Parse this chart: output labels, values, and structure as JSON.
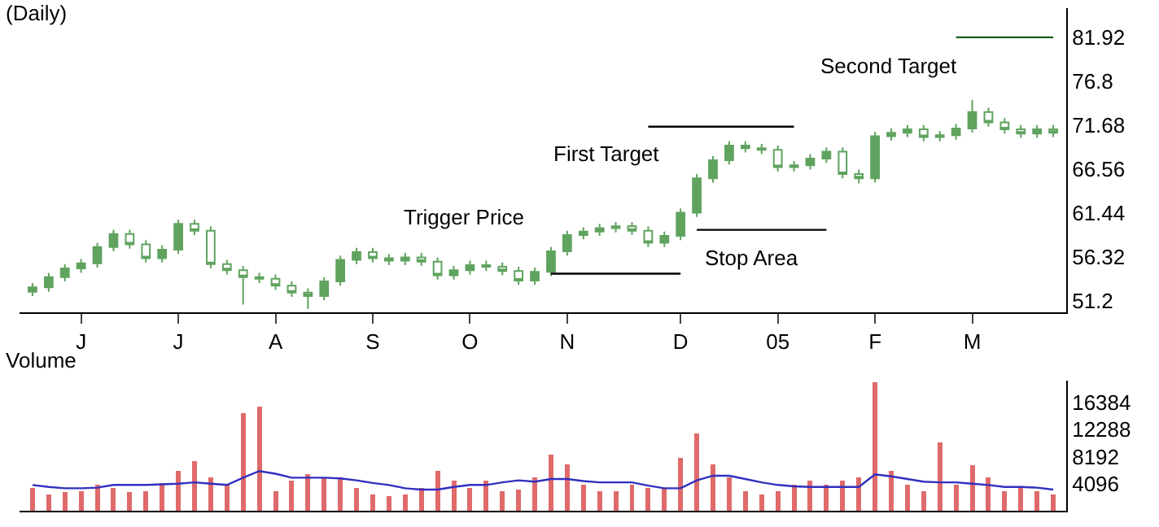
{
  "chart_data": [
    {
      "type": "candlestick",
      "title": "(Daily)",
      "color": "#5fa35f",
      "categories": [
        null,
        null,
        null,
        "J",
        null,
        null,
        null,
        null,
        null,
        "J",
        null,
        null,
        null,
        null,
        null,
        "A",
        null,
        null,
        null,
        null,
        null,
        "S",
        null,
        null,
        null,
        null,
        null,
        "O",
        null,
        null,
        null,
        null,
        null,
        "N",
        null,
        null,
        null,
        null,
        null,
        null,
        "D",
        null,
        null,
        null,
        null,
        null,
        "05",
        null,
        null,
        null,
        null,
        null,
        "F",
        null,
        null,
        null,
        null,
        null,
        "M",
        null,
        null,
        null,
        null,
        null
      ],
      "ohlc": [
        [
          52.3,
          53.3,
          51.8,
          52.8
        ],
        [
          52.8,
          54.5,
          52.3,
          54.0
        ],
        [
          54.0,
          55.5,
          53.5,
          55.0
        ],
        [
          55.0,
          56.1,
          54.5,
          55.6
        ],
        [
          55.6,
          58.0,
          55.1,
          57.5
        ],
        [
          57.5,
          59.5,
          57.0,
          59.0
        ],
        [
          59.0,
          59.5,
          57.3,
          57.8
        ],
        [
          57.8,
          58.3,
          55.7,
          56.2
        ],
        [
          56.2,
          57.7,
          55.7,
          57.2
        ],
        [
          57.2,
          60.7,
          56.7,
          60.2
        ],
        [
          60.2,
          60.7,
          58.9,
          59.4
        ],
        [
          59.4,
          59.9,
          55.0,
          55.5
        ],
        [
          55.5,
          56.0,
          54.3,
          54.8
        ],
        [
          54.8,
          55.3,
          50.8,
          54.0
        ],
        [
          54.0,
          54.5,
          53.3,
          53.8
        ],
        [
          53.8,
          54.3,
          52.5,
          53.0
        ],
        [
          53.0,
          53.5,
          51.7,
          52.2
        ],
        [
          52.2,
          52.7,
          50.3,
          51.8
        ],
        [
          51.8,
          54.0,
          51.3,
          53.5
        ],
        [
          53.5,
          56.5,
          53.0,
          56.0
        ],
        [
          56.0,
          57.4,
          55.5,
          56.9
        ],
        [
          56.9,
          57.4,
          55.7,
          56.2
        ],
        [
          56.2,
          56.7,
          55.4,
          55.9
        ],
        [
          55.9,
          56.8,
          55.4,
          56.3
        ],
        [
          56.3,
          56.8,
          55.3,
          55.8
        ],
        [
          55.8,
          56.3,
          53.7,
          54.2
        ],
        [
          54.2,
          55.3,
          53.7,
          54.8
        ],
        [
          54.8,
          55.9,
          54.3,
          55.4
        ],
        [
          55.4,
          55.9,
          54.7,
          55.2
        ],
        [
          55.2,
          55.7,
          54.2,
          54.7
        ],
        [
          54.7,
          55.2,
          53.1,
          53.6
        ],
        [
          53.6,
          55.1,
          53.1,
          54.6
        ],
        [
          54.6,
          57.5,
          54.1,
          57.0
        ],
        [
          57.0,
          59.4,
          56.5,
          58.9
        ],
        [
          58.9,
          59.8,
          58.4,
          59.3
        ],
        [
          59.3,
          60.2,
          58.8,
          59.7
        ],
        [
          59.7,
          60.4,
          59.2,
          59.9
        ],
        [
          59.9,
          60.4,
          58.9,
          59.4
        ],
        [
          59.4,
          59.9,
          57.5,
          58.0
        ],
        [
          58.0,
          59.3,
          57.5,
          58.8
        ],
        [
          58.8,
          62.0,
          58.3,
          61.5
        ],
        [
          61.5,
          66.0,
          61.0,
          65.5
        ],
        [
          65.5,
          68.1,
          65.0,
          67.6
        ],
        [
          67.6,
          69.8,
          67.1,
          69.3
        ],
        [
          69.3,
          69.8,
          68.5,
          69.0
        ],
        [
          69.0,
          69.5,
          68.3,
          68.8
        ],
        [
          68.8,
          69.3,
          66.3,
          66.8
        ],
        [
          66.8,
          67.5,
          66.3,
          67.0
        ],
        [
          67.0,
          68.3,
          66.5,
          67.8
        ],
        [
          67.8,
          69.1,
          67.3,
          68.6
        ],
        [
          68.6,
          69.1,
          65.5,
          66.0
        ],
        [
          66.0,
          66.5,
          64.9,
          65.5
        ],
        [
          65.5,
          70.9,
          65.0,
          70.4
        ],
        [
          70.4,
          71.3,
          69.9,
          70.8
        ],
        [
          70.8,
          71.7,
          70.3,
          71.2
        ],
        [
          71.2,
          71.7,
          69.8,
          70.3
        ],
        [
          70.3,
          71.0,
          69.8,
          70.5
        ],
        [
          70.5,
          71.8,
          70.0,
          71.3
        ],
        [
          71.3,
          74.6,
          70.8,
          73.2
        ],
        [
          73.2,
          73.7,
          71.5,
          72.0
        ],
        [
          72.0,
          72.5,
          70.7,
          71.2
        ],
        [
          71.2,
          71.7,
          70.2,
          70.7
        ],
        [
          70.7,
          71.7,
          70.2,
          71.2
        ],
        [
          71.2,
          71.7,
          70.3,
          70.8
        ]
      ],
      "series": [
        {
          "type": "line",
          "color": "#000000",
          "values": [
            null,
            null,
            null,
            null,
            null,
            null,
            null,
            null,
            null,
            null,
            null,
            null,
            null,
            null,
            null,
            null,
            null,
            null,
            null,
            null,
            null,
            null,
            null,
            null,
            null,
            null,
            null,
            null,
            null,
            null,
            null,
            null,
            54.4,
            54.4,
            54.4,
            54.4,
            54.4,
            54.4,
            54.4,
            54.4,
            54.4,
            null,
            null,
            null,
            null,
            null,
            null,
            null,
            null,
            null,
            null,
            null,
            null,
            null,
            null,
            null,
            null,
            null,
            null,
            null,
            null,
            null,
            null,
            null
          ]
        },
        {
          "type": "line",
          "color": "#000000",
          "values": [
            null,
            null,
            null,
            null,
            null,
            null,
            null,
            null,
            null,
            null,
            null,
            null,
            null,
            null,
            null,
            null,
            null,
            null,
            null,
            null,
            null,
            null,
            null,
            null,
            null,
            null,
            null,
            null,
            null,
            null,
            null,
            null,
            null,
            null,
            null,
            null,
            null,
            null,
            null,
            null,
            null,
            59.5,
            59.5,
            59.5,
            59.5,
            59.5,
            59.5,
            59.5,
            59.5,
            59.5,
            null,
            null,
            null,
            null,
            null,
            null,
            null,
            null,
            null,
            null,
            null,
            null,
            null,
            null
          ]
        },
        {
          "type": "line",
          "color": "#000000",
          "values": [
            null,
            null,
            null,
            null,
            null,
            null,
            null,
            null,
            null,
            null,
            null,
            null,
            null,
            null,
            null,
            null,
            null,
            null,
            null,
            null,
            null,
            null,
            null,
            null,
            null,
            null,
            null,
            null,
            null,
            null,
            null,
            null,
            null,
            null,
            null,
            null,
            null,
            null,
            71.5,
            71.5,
            71.5,
            71.5,
            71.5,
            71.5,
            71.5,
            71.5,
            71.5,
            71.5,
            null,
            null,
            null,
            null,
            null,
            null,
            null,
            null,
            null,
            null,
            null,
            null,
            null,
            null,
            null,
            null
          ]
        },
        {
          "type": "line",
          "color": "#1a5c1a",
          "values": [
            null,
            null,
            null,
            null,
            null,
            null,
            null,
            null,
            null,
            null,
            null,
            null,
            null,
            null,
            null,
            null,
            null,
            null,
            null,
            null,
            null,
            null,
            null,
            null,
            null,
            null,
            null,
            null,
            null,
            null,
            null,
            null,
            null,
            null,
            null,
            null,
            null,
            null,
            null,
            null,
            null,
            null,
            null,
            null,
            null,
            null,
            null,
            null,
            null,
            null,
            null,
            null,
            null,
            null,
            null,
            null,
            null,
            81.9,
            81.9,
            81.9,
            81.9,
            81.9,
            81.9,
            81.9
          ]
        }
      ],
      "annotations": [
        "Trigger Price",
        "Stop Area",
        "First Target",
        "Second Target"
      ],
      "ylim": [
        49.9,
        85.3
      ],
      "yticks": [
        51.2,
        56.32,
        61.44,
        66.56,
        71.68,
        76.8,
        81.92
      ]
    },
    {
      "type": "bar",
      "title": "Volume",
      "categories": [
        null,
        null,
        null,
        null,
        null,
        null,
        null,
        null,
        null,
        null,
        null,
        null,
        null,
        null,
        null,
        null,
        null,
        null,
        null,
        null,
        null,
        null,
        null,
        null,
        null,
        null,
        null,
        null,
        null,
        null,
        null,
        null,
        null,
        null,
        null,
        null,
        null,
        null,
        null,
        null,
        null,
        null,
        null,
        null,
        null,
        null,
        null,
        null,
        null,
        null,
        null,
        null,
        null,
        null,
        null,
        null,
        null,
        null,
        null,
        null,
        null,
        null,
        null,
        null
      ],
      "color": "#e06a6a",
      "values": [
        3500,
        2500,
        2800,
        3000,
        4000,
        3500,
        2800,
        3000,
        4200,
        6000,
        7500,
        5000,
        4000,
        14800,
        15700,
        3000,
        4500,
        5500,
        5000,
        5000,
        3500,
        2500,
        2200,
        2500,
        3500,
        6000,
        4500,
        3500,
        4500,
        3000,
        3200,
        5000,
        8500,
        7000,
        4000,
        3000,
        3000,
        4000,
        3500,
        3500,
        8000,
        11700,
        7000,
        5000,
        3000,
        2500,
        3000,
        4000,
        4500,
        4000,
        4500,
        5000,
        19400,
        6000,
        4000,
        3000,
        10400,
        4000,
        6900,
        5000,
        3000,
        3500,
        3000,
        2500
      ],
      "series": [
        {
          "type": "line",
          "color": "#3030c0",
          "values": [
            3900,
            3600,
            3400,
            3400,
            3500,
            3900,
            3900,
            3900,
            4000,
            4100,
            4300,
            4100,
            3900,
            5000,
            6000,
            5600,
            5000,
            5000,
            5000,
            4900,
            4600,
            4200,
            3900,
            3400,
            3200,
            3200,
            3600,
            3900,
            3900,
            4300,
            4600,
            4400,
            4800,
            4800,
            4500,
            4300,
            4300,
            4300,
            3800,
            3400,
            3400,
            4600,
            5300,
            5300,
            4800,
            4300,
            3900,
            3700,
            3600,
            3600,
            3600,
            3600,
            5500,
            5200,
            4800,
            4400,
            4300,
            4300,
            4100,
            3900,
            3600,
            3600,
            3500,
            3200
          ]
        }
      ],
      "tick_labels": "y",
      "ylim": [
        0,
        19700
      ],
      "yticks": [
        4096,
        8192,
        12288,
        16384
      ]
    }
  ]
}
